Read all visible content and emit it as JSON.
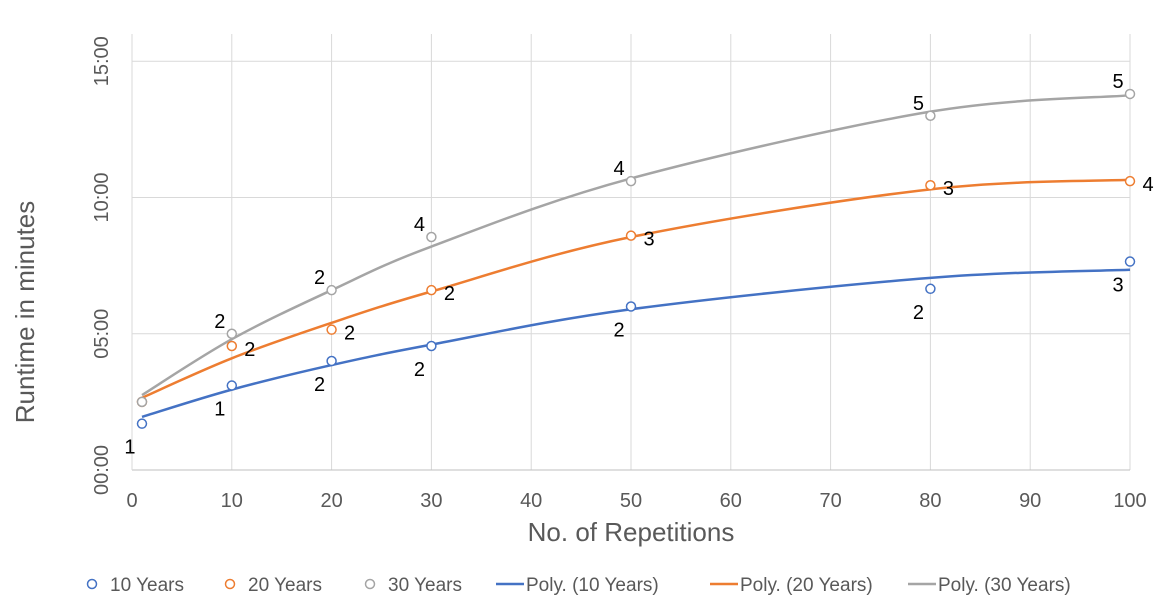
{
  "chart_data": {
    "type": "scatter",
    "xlabel": "No. of Repetitions",
    "ylabel": "Runtime in minutes",
    "xlim": [
      0,
      100
    ],
    "ylim": [
      0,
      16
    ],
    "x_ticks": [
      "0",
      "10",
      "20",
      "30",
      "40",
      "50",
      "60",
      "70",
      "80",
      "90",
      "100"
    ],
    "y_ticks": [
      {
        "value": 0,
        "label": "00:00"
      },
      {
        "value": 5,
        "label": "05:00"
      },
      {
        "value": 10,
        "label": "10:00"
      },
      {
        "value": 15,
        "label": "15:00"
      }
    ],
    "grid": "vertical",
    "legend_position": "bottom",
    "series": [
      {
        "name": "10 Years",
        "color": "#4472c4",
        "points": [
          {
            "x": 1,
            "y": 1.7,
            "label": "1"
          },
          {
            "x": 10,
            "y": 3.1,
            "label": "1"
          },
          {
            "x": 20,
            "y": 4.0,
            "label": "2"
          },
          {
            "x": 30,
            "y": 4.55,
            "label": "2"
          },
          {
            "x": 50,
            "y": 6.0,
            "label": "2"
          },
          {
            "x": 80,
            "y": 6.65,
            "label": "2"
          },
          {
            "x": 100,
            "y": 7.65,
            "label": "3"
          }
        ]
      },
      {
        "name": "20 Years",
        "color": "#ed7d31",
        "points": [
          {
            "x": 1,
            "y": 2.5,
            "label": ""
          },
          {
            "x": 10,
            "y": 4.55,
            "label": "2"
          },
          {
            "x": 20,
            "y": 5.15,
            "label": "2"
          },
          {
            "x": 30,
            "y": 6.6,
            "label": "2"
          },
          {
            "x": 50,
            "y": 8.6,
            "label": "3"
          },
          {
            "x": 80,
            "y": 10.45,
            "label": "3"
          },
          {
            "x": 100,
            "y": 10.6,
            "label": "4"
          }
        ]
      },
      {
        "name": "30 Years",
        "color": "#a5a5a5",
        "points": [
          {
            "x": 1,
            "y": 2.5,
            "label": ""
          },
          {
            "x": 10,
            "y": 5.0,
            "label": "2"
          },
          {
            "x": 20,
            "y": 6.6,
            "label": "2"
          },
          {
            "x": 30,
            "y": 8.55,
            "label": "4"
          },
          {
            "x": 50,
            "y": 10.6,
            "label": "4"
          },
          {
            "x": 80,
            "y": 13.0,
            "label": "5"
          },
          {
            "x": 100,
            "y": 13.8,
            "label": "5"
          }
        ]
      }
    ],
    "trendlines": [
      {
        "name": "Poly. (10 Years)",
        "color": "#4472c4",
        "order": 2,
        "points": [
          [
            1,
            1.95
          ],
          [
            10,
            2.95
          ],
          [
            20,
            3.85
          ],
          [
            30,
            4.6
          ],
          [
            50,
            5.9
          ],
          [
            80,
            7.05
          ],
          [
            100,
            7.35
          ]
        ]
      },
      {
        "name": "Poly. (20 Years)",
        "color": "#ed7d31",
        "order": 2,
        "points": [
          [
            1,
            2.65
          ],
          [
            10,
            4.1
          ],
          [
            20,
            5.4
          ],
          [
            30,
            6.55
          ],
          [
            50,
            8.55
          ],
          [
            80,
            10.3
          ],
          [
            100,
            10.65
          ]
        ]
      },
      {
        "name": "Poly. (30 Years)",
        "color": "#a5a5a5",
        "order": 2,
        "points": [
          [
            1,
            2.75
          ],
          [
            10,
            4.8
          ],
          [
            20,
            6.6
          ],
          [
            30,
            8.2
          ],
          [
            50,
            10.7
          ],
          [
            80,
            13.15
          ],
          [
            100,
            13.75
          ]
        ]
      }
    ],
    "legend": [
      {
        "label": "10 Years",
        "kind": "marker",
        "color": "#4472c4"
      },
      {
        "label": "20 Years",
        "kind": "marker",
        "color": "#ed7d31"
      },
      {
        "label": "30 Years",
        "kind": "marker",
        "color": "#a5a5a5"
      },
      {
        "label": "Poly. (10 Years)",
        "kind": "line",
        "color": "#4472c4"
      },
      {
        "label": "Poly. (20 Years)",
        "kind": "line",
        "color": "#ed7d31"
      },
      {
        "label": "Poly. (30 Years)",
        "kind": "line",
        "color": "#a5a5a5"
      }
    ]
  }
}
